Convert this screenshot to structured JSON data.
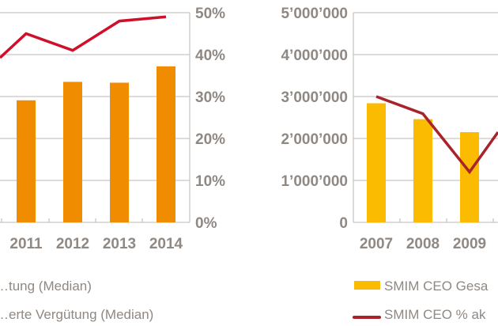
{
  "chart_data": [
    {
      "type": "bar",
      "categories": [
        "2011",
        "2012",
        "2013",
        "2014"
      ],
      "series": [
        {
          "type": "bar",
          "values": [
            29.1,
            33.5,
            33.3,
            37.2
          ],
          "color": "#f08c00"
        },
        {
          "type": "line",
          "values": [
            45,
            41,
            48,
            49
          ],
          "color": "#d0102a"
        }
      ],
      "y_axis": {
        "position": "right",
        "ylim": [
          0,
          50
        ],
        "ticks": [
          "0%",
          "10%",
          "20%",
          "30%",
          "40%",
          "50%"
        ]
      },
      "grid": true,
      "legend": {
        "position": "bottom",
        "entries": [
          "…tung (Median)",
          "…erte Vergütung (Median)"
        ]
      }
    },
    {
      "type": "bar",
      "categories": [
        "2007",
        "2008",
        "2009"
      ],
      "series": [
        {
          "type": "bar",
          "values": [
            2840000,
            2460000,
            2150000
          ],
          "color": "#fbbb00"
        },
        {
          "type": "line",
          "values": [
            3000000,
            2590000,
            1200000
          ],
          "color": "#a8232a"
        }
      ],
      "y_axis": {
        "position": "left",
        "ylim": [
          0,
          5000000
        ],
        "ticks": [
          "0",
          "1’000’000",
          "2’000’000",
          "3’000’000",
          "4’000’000",
          "5’000’000"
        ]
      },
      "grid": true,
      "legend": {
        "position": "bottom",
        "entries": [
          "SMIM CEO Gesa",
          "SMIM CEO % ak"
        ]
      }
    }
  ]
}
